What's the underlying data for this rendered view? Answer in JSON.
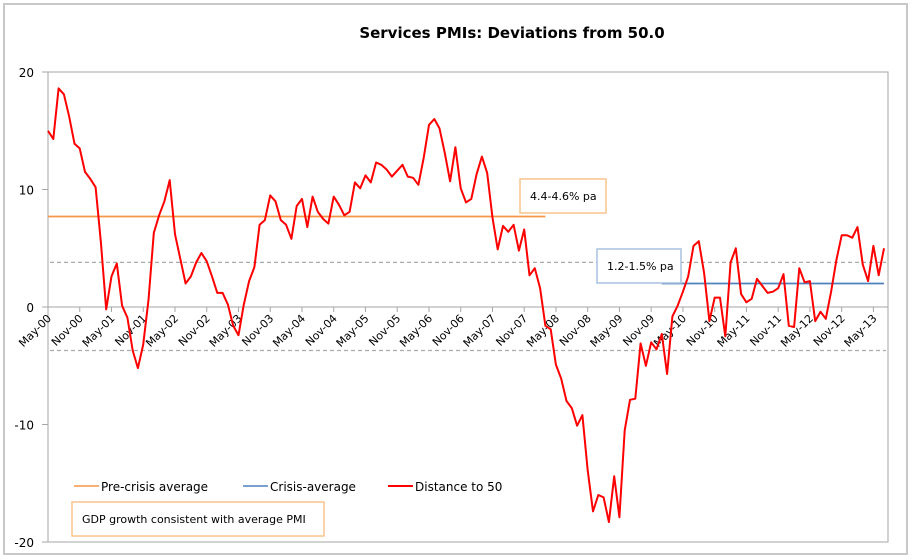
{
  "chart_data": {
    "type": "line",
    "title": "Services PMIs: Deviations from 50.0",
    "xlabel": "",
    "ylabel": "",
    "ylim": [
      -20,
      20
    ],
    "yticks": [
      20,
      10,
      0,
      -10,
      -20
    ],
    "grid": false,
    "x_start": "May-00",
    "x_end": "Aug-13",
    "frequency": "monthly",
    "xtick_labels": [
      "May-00",
      "Nov-00",
      "May-01",
      "Nov-01",
      "May-02",
      "Nov-02",
      "May-03",
      "Nov-03",
      "May-04",
      "Nov-04",
      "May-05",
      "Nov-05",
      "May-06",
      "Nov-06",
      "May-07",
      "Nov-07",
      "May-08",
      "Nov-08",
      "May-09",
      "Nov-09",
      "May-10",
      "Nov-10",
      "May-11",
      "Nov-11",
      "May-12",
      "Nov-12",
      "May-13"
    ],
    "series": [
      {
        "name": "Distance to 50",
        "color": "#ff0000",
        "values": [
          15.0,
          14.3,
          18.6,
          18.1,
          16.2,
          13.9,
          13.5,
          11.5,
          10.9,
          10.2,
          5.5,
          -0.2,
          2.6,
          3.7,
          0.1,
          -0.9,
          -3.7,
          -5.2,
          -3.2,
          0.6,
          6.3,
          7.8,
          9.0,
          10.8,
          6.2,
          4.1,
          2.0,
          2.6,
          3.8,
          4.6,
          3.9,
          2.6,
          1.2,
          1.2,
          0.2,
          -1.6,
          -2.4,
          0.2,
          2.2,
          3.4,
          7.0,
          7.4,
          9.5,
          9.0,
          7.4,
          7.0,
          5.8,
          8.6,
          9.2,
          6.8,
          9.4,
          8.1,
          7.5,
          7.1,
          9.4,
          8.7,
          7.8,
          8.1,
          10.6,
          10.1,
          11.2,
          10.6,
          12.3,
          12.1,
          11.7,
          11.1,
          11.6,
          12.1,
          11.1,
          11.0,
          10.4,
          12.7,
          15.5,
          16.0,
          15.2,
          13.1,
          10.7,
          13.6,
          10.1,
          8.9,
          9.2,
          11.3,
          12.8,
          11.4,
          7.6,
          4.9,
          6.9,
          6.4,
          7.0,
          4.8,
          6.6,
          2.7,
          3.3,
          1.6,
          -1.6,
          -1.9,
          -4.9,
          -6.1,
          -8.0,
          -8.6,
          -10.1,
          -9.2,
          -13.9,
          -17.4,
          -16.0,
          -16.2,
          -18.3,
          -14.4,
          -17.9,
          -10.5,
          -7.9,
          -7.8,
          -3.1,
          -5.0,
          -3.0,
          -3.6,
          -2.3,
          -5.7,
          -0.8,
          0.1,
          1.3,
          2.6,
          5.2,
          5.6,
          2.9,
          -1.2,
          0.8,
          0.8,
          -2.5,
          3.8,
          5.0,
          1.1,
          0.4,
          0.7,
          2.4,
          1.8,
          1.2,
          1.3,
          1.6,
          2.8,
          -1.6,
          -1.7,
          3.3,
          2.1,
          2.2,
          -1.2,
          -0.4,
          -1.0,
          1.3,
          4.0,
          6.1,
          6.1,
          5.9,
          6.8,
          3.6,
          2.2,
          5.2,
          2.7,
          5.0
        ]
      }
    ],
    "reference_lines": [
      {
        "name": "Pre-crisis average",
        "value": 7.7,
        "color": "#f79646",
        "style": "solid",
        "from": "May-00",
        "to": "Mar-08"
      },
      {
        "name": "Crisis-average",
        "value": 2.0,
        "color": "#4f81bd",
        "style": "solid",
        "from": "Jan-10",
        "to": "Aug-13"
      },
      {
        "name": "upper dashed band",
        "value": 3.8,
        "color": "#aaaaaa",
        "style": "dashed"
      },
      {
        "name": "lower dashed band",
        "value": -3.7,
        "color": "#aaaaaa",
        "style": "dashed"
      }
    ],
    "annotations": [
      {
        "text": "4.4-4.6% pa",
        "border_color": "#f79646",
        "anchored_to": "Pre-crisis average"
      },
      {
        "text": "1.2-1.5% pa",
        "border_color": "#7f9fc9",
        "anchored_to": "Crisis-average"
      },
      {
        "text": "GDP growth consistent with average PMI",
        "border_color": "#f79646"
      }
    ],
    "legend": {
      "placement": "bottom-left",
      "entries": [
        {
          "label": "Pre-crisis average",
          "color": "#f79646"
        },
        {
          "label": "Crisis-average",
          "color": "#4f81bd"
        },
        {
          "label": "Distance to 50",
          "color": "#ff0000"
        }
      ]
    }
  }
}
